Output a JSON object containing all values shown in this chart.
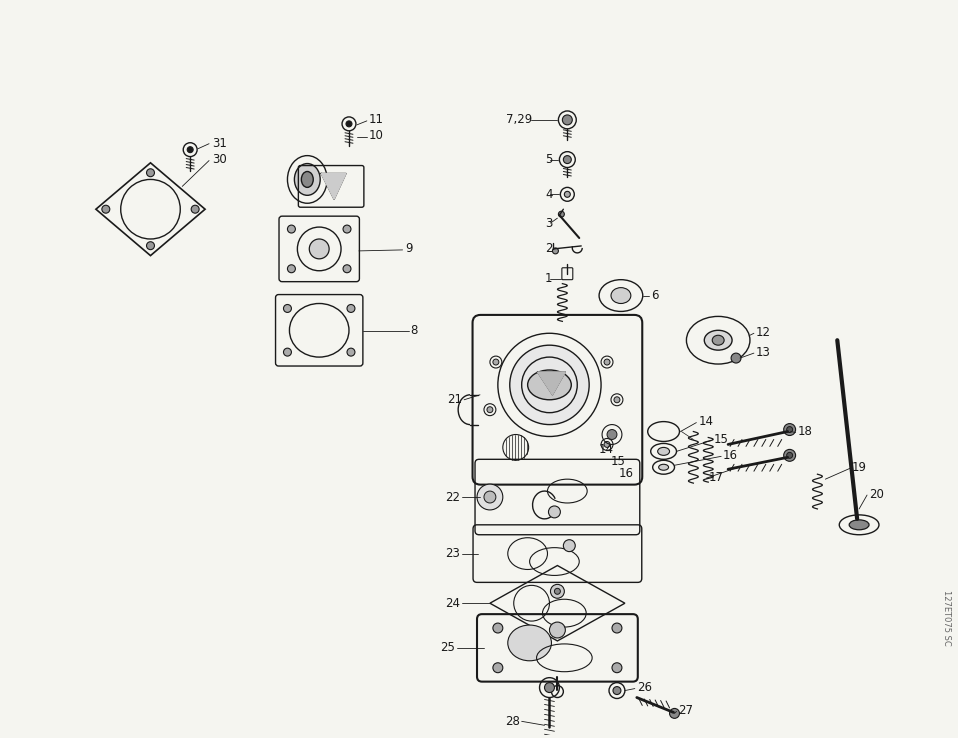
{
  "bg_color": "#f5f5f0",
  "fig_width": 9.58,
  "fig_height": 7.38,
  "dpi": 100,
  "watermark": "127ET075 SC",
  "line_color": "#1a1a1a",
  "label_fontsize": 8.5
}
